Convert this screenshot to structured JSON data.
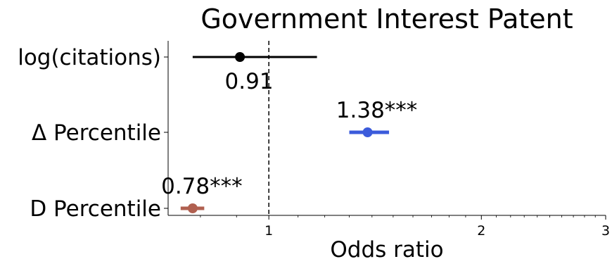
{
  "chart_data": {
    "type": "forest",
    "title": "Government Interest Patent",
    "xlabel": "Odds ratio",
    "ylabel": "",
    "x_scale": "log",
    "xlim": [
      0.72,
      3.0
    ],
    "xticks": [
      1,
      2,
      3
    ],
    "xtick_labels": [
      "1",
      "2",
      "3"
    ],
    "reference_line": 1,
    "grid": false,
    "rows": [
      {
        "label": "log(citations)",
        "estimate": 0.91,
        "ci_low": 0.78,
        "ci_high": 1.17,
        "value_label": "0.91",
        "color": "#000000",
        "label_position": "below"
      },
      {
        "label": "Δ Percentile",
        "estimate": 1.38,
        "ci_low": 1.3,
        "ci_high": 1.48,
        "value_label": "1.38***",
        "color": "#3b5bdb",
        "label_position": "above"
      },
      {
        "label": "D Percentile",
        "estimate": 0.78,
        "ci_low": 0.75,
        "ci_high": 0.81,
        "value_label": "0.78***",
        "color": "#b06050",
        "label_position": "above"
      }
    ]
  }
}
